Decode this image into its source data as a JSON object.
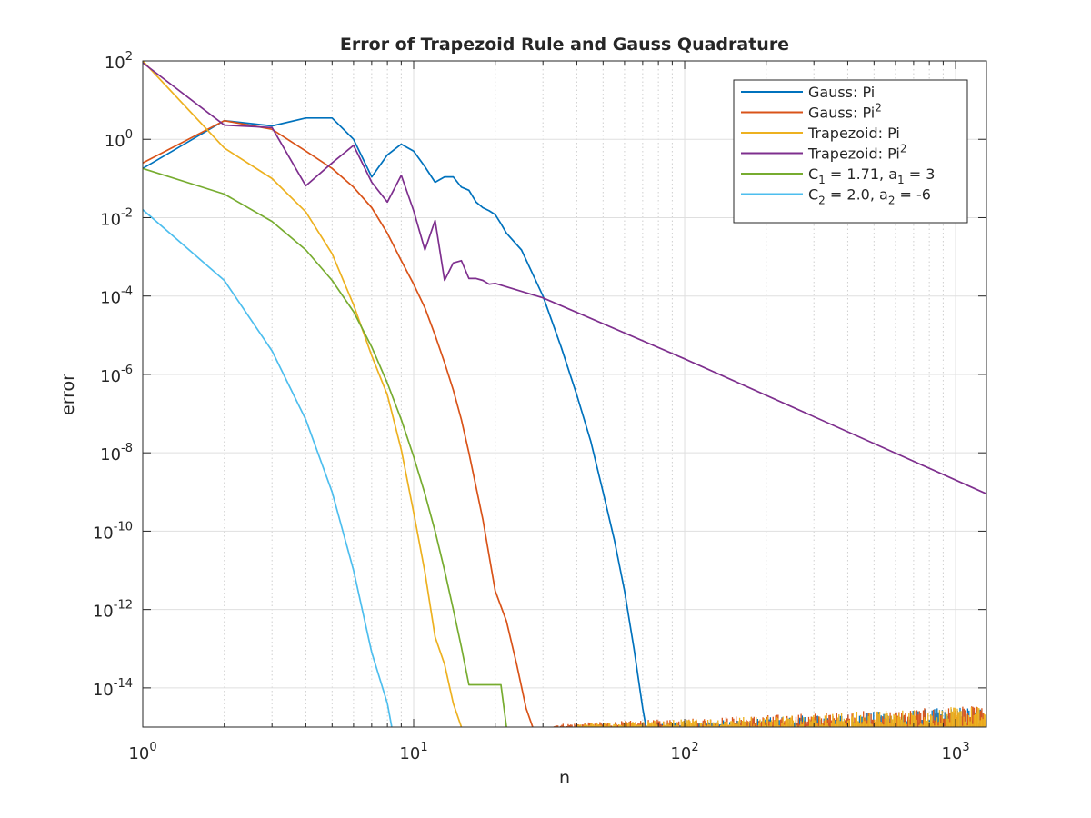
{
  "chart_data": {
    "type": "line",
    "title": "Error of Trapezoid Rule and Gauss Quadrature",
    "xlabel": "n",
    "ylabel": "error",
    "x_scale": "log",
    "y_scale": "log",
    "xlim": [
      1,
      1300
    ],
    "ylim": [
      1e-15,
      100
    ],
    "grid": "on (log minor x, major y)",
    "legend_position": "top-right",
    "x_ticks": [
      {
        "base": "10",
        "exp": "0",
        "value": 1
      },
      {
        "base": "10",
        "exp": "1",
        "value": 10
      },
      {
        "base": "10",
        "exp": "2",
        "value": 100
      },
      {
        "base": "10",
        "exp": "3",
        "value": 1000
      }
    ],
    "y_ticks": [
      {
        "base": "10",
        "exp": "2",
        "value": 2
      },
      {
        "base": "10",
        "exp": "0",
        "value": 0
      },
      {
        "base": "10",
        "exp": "-2",
        "value": -2
      },
      {
        "base": "10",
        "exp": "-4",
        "value": -4
      },
      {
        "base": "10",
        "exp": "-6",
        "value": -6
      },
      {
        "base": "10",
        "exp": "-8",
        "value": -8
      },
      {
        "base": "10",
        "exp": "-10",
        "value": -10
      },
      {
        "base": "10",
        "exp": "-12",
        "value": -12
      },
      {
        "base": "10",
        "exp": "-14",
        "value": -14
      }
    ],
    "series": [
      {
        "name": "Gauss: Pi",
        "legend_parts": [
          {
            "t": "Gauss: Pi"
          }
        ],
        "color": "#0072bd",
        "x": [
          1,
          2,
          3,
          4,
          5,
          6,
          7,
          8,
          9,
          10,
          11,
          12,
          13,
          14,
          15,
          16,
          17,
          18,
          19,
          20,
          21,
          22,
          25,
          30,
          35,
          40,
          45,
          50,
          55,
          60,
          65,
          70,
          72
        ],
        "y": [
          0.18,
          3,
          2.2,
          3.5,
          3.5,
          1.0,
          0.11,
          0.4,
          0.75,
          0.5,
          0.2,
          0.08,
          0.11,
          0.11,
          0.06,
          0.05,
          0.025,
          0.018,
          0.015,
          0.012,
          0.007,
          0.004,
          0.0015,
          0.0001,
          5e-06,
          3e-07,
          2e-08,
          1e-09,
          6e-11,
          3e-12,
          1e-13,
          3e-15,
          1e-15
        ]
      },
      {
        "name": "Gauss: Pi^2",
        "legend_parts": [
          {
            "t": "Gauss: Pi"
          },
          {
            "t": "2",
            "sup": true
          }
        ],
        "color": "#d95319",
        "x": [
          1,
          2,
          3,
          4,
          5,
          6,
          7,
          8,
          9,
          10,
          11,
          12,
          13,
          14,
          15,
          16,
          18,
          20,
          22,
          24,
          26,
          27.5
        ],
        "y": [
          0.25,
          3,
          1.8,
          0.5,
          0.18,
          0.06,
          0.018,
          0.004,
          0.0008,
          0.0002,
          5e-05,
          1e-05,
          2e-06,
          4e-07,
          7e-08,
          1e-08,
          2e-10,
          3e-12,
          5e-13,
          4e-14,
          3e-15,
          1e-15
        ]
      },
      {
        "name": "Trapezoid: Pi",
        "legend_parts": [
          {
            "t": "Trapezoid: Pi"
          }
        ],
        "color": "#edb120",
        "x": [
          1,
          2,
          3,
          4,
          5,
          6,
          7,
          8,
          9,
          10,
          11,
          12,
          13,
          14,
          15
        ],
        "y": [
          100,
          0.6,
          0.1,
          0.014,
          0.0012,
          6e-05,
          3e-06,
          3e-07,
          1.2e-08,
          3e-10,
          9e-12,
          2e-13,
          4e-14,
          4e-15,
          1e-15
        ]
      },
      {
        "name": "Trapezoid: Pi^2",
        "legend_parts": [
          {
            "t": "Trapezoid: Pi"
          },
          {
            "t": "2",
            "sup": true
          }
        ],
        "color": "#7e2f8e",
        "x": [
          1,
          2,
          3,
          4,
          5,
          6,
          7,
          8,
          9,
          10,
          11,
          12,
          13,
          14,
          15,
          16,
          17,
          18,
          19,
          20,
          30,
          100,
          1300
        ],
        "y": [
          90,
          2.3,
          2.0,
          0.065,
          0.25,
          0.7,
          0.08,
          0.025,
          0.12,
          0.015,
          0.0015,
          0.0085,
          0.00025,
          0.0007,
          0.0008,
          0.00028,
          0.00028,
          0.00025,
          0.0002,
          0.00021,
          9e-05,
          2.5e-06,
          9e-10
        ]
      },
      {
        "name": "C_1 = 1.71, a_1 = 3",
        "legend_parts": [
          {
            "t": "C"
          },
          {
            "t": "1",
            "sub": true
          },
          {
            "t": " = 1.71, a"
          },
          {
            "t": "1",
            "sub": true
          },
          {
            "t": " = 3"
          }
        ],
        "color": "#77ac30",
        "x": [
          1,
          2,
          3,
          4,
          5,
          6,
          7,
          8,
          9,
          10,
          11,
          12,
          13,
          14,
          15,
          16,
          17,
          18,
          19,
          20,
          21,
          22
        ],
        "y": [
          0.18,
          0.04,
          0.008,
          0.0015,
          0.00025,
          4e-05,
          5e-06,
          6e-07,
          7e-08,
          8e-09,
          9e-10,
          1e-10,
          1e-11,
          1e-12,
          1.1e-13,
          1.2e-14,
          1.2e-14,
          1.2e-14,
          1.2e-14,
          1.2e-14,
          1.2e-14,
          1e-15
        ]
      },
      {
        "name": "C_2 = 2.0, a_2 = -6",
        "legend_parts": [
          {
            "t": "C"
          },
          {
            "t": "2",
            "sub": true
          },
          {
            "t": " = 2.0, a"
          },
          {
            "t": "2",
            "sub": true
          },
          {
            "t": " = -6"
          }
        ],
        "color": "#4dbeee",
        "x": [
          1,
          2,
          3,
          4,
          5,
          6,
          7,
          8,
          8.3
        ],
        "y": [
          0.016,
          0.00025,
          4e-06,
          7e-08,
          1e-09,
          1e-11,
          8e-14,
          4e-15,
          1e-15
        ]
      }
    ]
  }
}
